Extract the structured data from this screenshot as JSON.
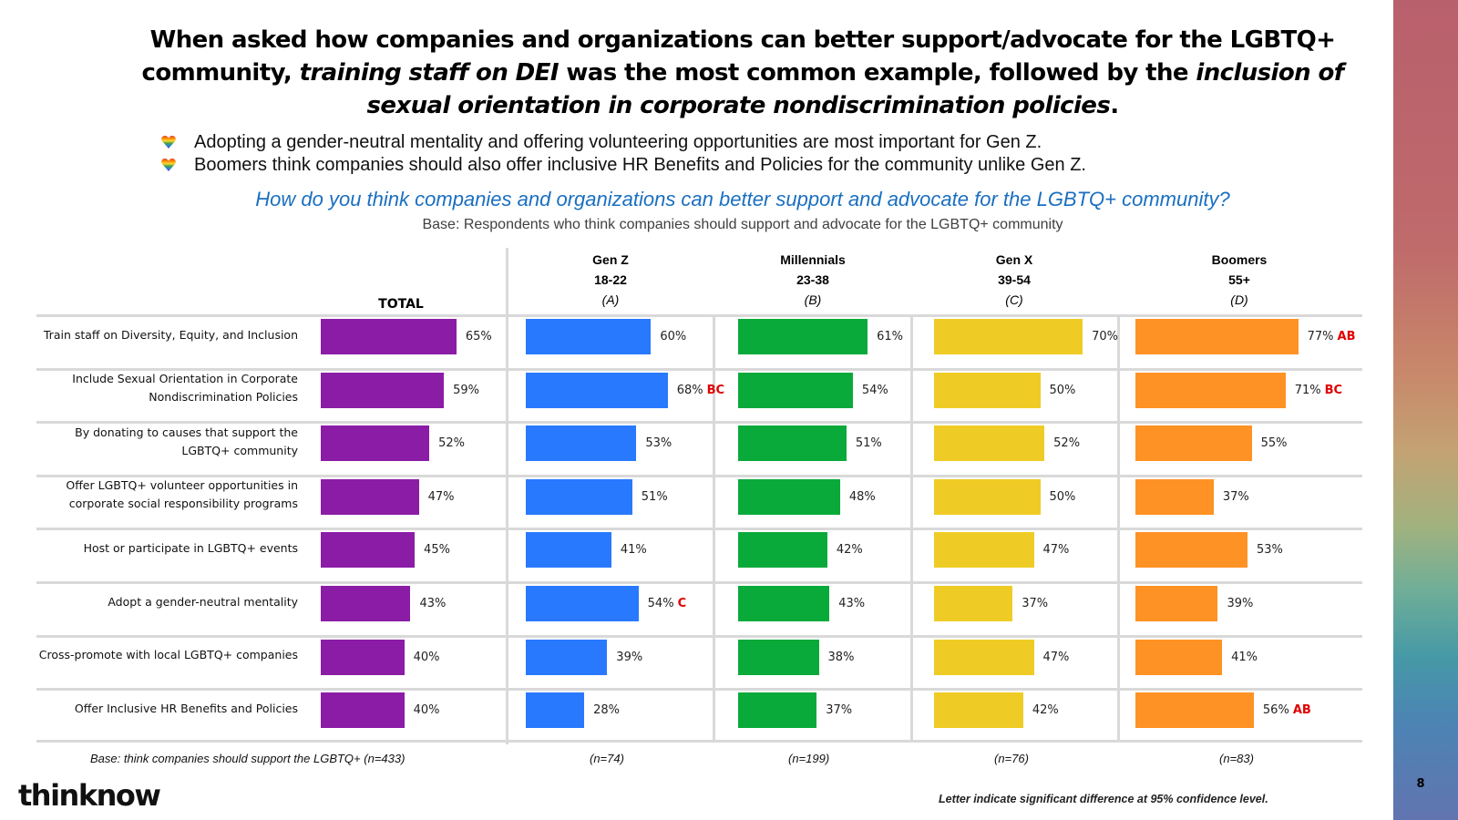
{
  "title": {
    "part1": "When asked how companies and organizations can better support/advocate for the LGBTQ+ community, ",
    "italic1": "training staff on DEI",
    "part2": " was the most common example, followed by the ",
    "italic2": "inclusion of sexual orientation in corporate nondiscrimination policies",
    "part3": "."
  },
  "bullets": [
    {
      "icon": "rainbow-heart-icon",
      "text": "Adopting a gender-neutral mentality and offering volunteering opportunities are most important for Gen Z."
    },
    {
      "icon": "rainbow-heart-icon",
      "text": "Boomers think companies should also offer inclusive HR Benefits and Policies for the community unlike Gen Z."
    }
  ],
  "question": "How do you think companies and organizations can better support and advocate for the LGBTQ+ community?",
  "base_note": "Base: Respondents who think companies should support and advocate for the LGBTQ+ community",
  "page_number": "8",
  "logo": "thinknow",
  "significance_note": "Letter indicate significant difference at 95% confidence level.",
  "colors": {
    "total": "#8b1ca6",
    "gen_z": "#2979ff",
    "millennials": "#0aaa3a",
    "gen_x": "#efcc25",
    "boomers": "#ff9224",
    "significance": "#e00000",
    "question": "#1a6fc0"
  },
  "chart_data": {
    "type": "bar",
    "orientation": "horizontal",
    "title": "How do you think companies and organizations can better support and advocate for the LGBTQ+ community?",
    "categories": [
      "Train staff on Diversity, Equity, and Inclusion",
      "Include Sexual Orientation in Corporate Nondiscrimination Policies",
      "By donating to causes that support the LGBTQ+ community",
      "Offer LGBTQ+ volunteer opportunities in corporate social responsibility programs",
      "Host or participate in LGBTQ+ events",
      "Adopt a gender-neutral mentality",
      "Cross-promote with local LGBTQ+ companies",
      "Offer Inclusive HR Benefits and Policies"
    ],
    "unit": "%",
    "series": [
      {
        "name": "TOTAL",
        "header": [
          "TOTAL"
        ],
        "base": "Base: think companies should support the LGBTQ+  (n=433)",
        "color_key": "total",
        "values": [
          65,
          59,
          52,
          47,
          45,
          43,
          40,
          40
        ],
        "sig": [
          "",
          "",
          "",
          "",
          "",
          "",
          "",
          ""
        ]
      },
      {
        "name": "Gen Z",
        "header": [
          "Gen Z",
          "18-22",
          "(A)"
        ],
        "base": "(n=74)",
        "color_key": "gen_z",
        "values": [
          60,
          68,
          53,
          51,
          41,
          54,
          39,
          28
        ],
        "sig": [
          "",
          "BC",
          "",
          "",
          "",
          "C",
          "",
          ""
        ]
      },
      {
        "name": "Millennials",
        "header": [
          "Millennials",
          "23-38",
          "(B)"
        ],
        "base": "(n=199)",
        "color_key": "millennials",
        "values": [
          61,
          54,
          51,
          48,
          42,
          43,
          38,
          37
        ],
        "sig": [
          "",
          "",
          "",
          "",
          "",
          "",
          "",
          ""
        ]
      },
      {
        "name": "Gen X",
        "header": [
          "Gen X",
          "39-54",
          "(C)"
        ],
        "base": "(n=76)",
        "color_key": "gen_x",
        "values": [
          70,
          50,
          52,
          50,
          47,
          37,
          47,
          42
        ],
        "sig": [
          "",
          "",
          "",
          "",
          "",
          "",
          "",
          ""
        ]
      },
      {
        "name": "Boomers",
        "header": [
          "Boomers",
          "55+",
          "(D)"
        ],
        "base": "(n=83)",
        "color_key": "boomers",
        "values": [
          77,
          71,
          55,
          37,
          53,
          39,
          41,
          56
        ],
        "sig": [
          "AB",
          "BC",
          "",
          "",
          "",
          "",
          "",
          "AB"
        ]
      }
    ],
    "xlim": [
      0,
      100
    ],
    "grid": false,
    "legend": "none"
  }
}
